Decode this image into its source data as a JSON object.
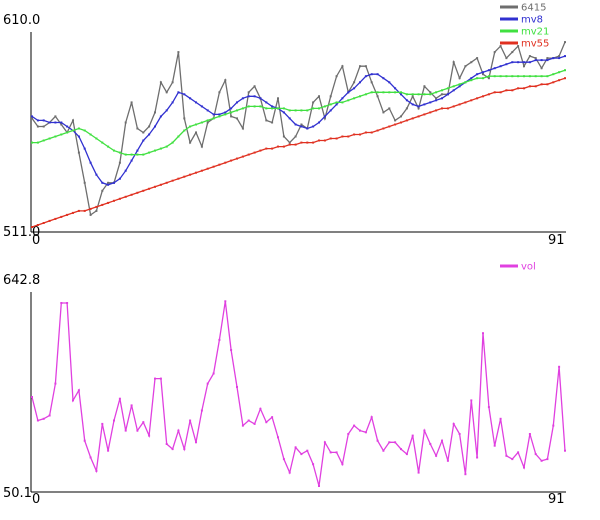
{
  "chart_data": [
    {
      "type": "line",
      "ylim": [
        511.0,
        610.0
      ],
      "xlim": [
        0,
        91
      ],
      "y_tick_labels": [
        "610.0",
        "511.0"
      ],
      "x_tick_labels": [
        "0",
        "91"
      ],
      "legend_placement": "top-right",
      "series": [
        {
          "name": "6415",
          "color": "#6e6e6e",
          "values": [
            567,
            563,
            563,
            565,
            568,
            564,
            560,
            566,
            550,
            535,
            519,
            521,
            531,
            535,
            535,
            545,
            565,
            575,
            562,
            560,
            563,
            570,
            585,
            580,
            585,
            600,
            567,
            555,
            560,
            553,
            565,
            567,
            580,
            586,
            568,
            567,
            562,
            580,
            583,
            577,
            566,
            565,
            577,
            558,
            555,
            558,
            564,
            562,
            575,
            578,
            567,
            578,
            588,
            593,
            580,
            585,
            593,
            593,
            585,
            578,
            570,
            572,
            566,
            568,
            572,
            578,
            572,
            583,
            580,
            577,
            579,
            579,
            595,
            587,
            593,
            595,
            597,
            589,
            587,
            600,
            603,
            597,
            600,
            603,
            593,
            598,
            597,
            592,
            597,
            597,
            598,
            605
          ]
        },
        {
          "name": "mv8",
          "color": "#3030d0",
          "values": [
            568,
            566,
            566,
            565,
            565,
            565,
            563,
            561,
            558,
            552,
            545,
            539,
            535,
            534,
            535,
            537,
            541,
            546,
            551,
            556,
            559,
            563,
            568,
            571,
            575,
            580,
            579,
            577,
            575,
            573,
            571,
            569,
            569,
            570,
            572,
            575,
            577,
            578,
            578,
            577,
            575,
            573,
            572,
            570,
            567,
            564,
            563,
            562,
            563,
            565,
            568,
            571,
            574,
            577,
            580,
            582,
            585,
            588,
            589,
            589,
            587,
            585,
            582,
            579,
            576,
            574,
            573,
            574,
            575,
            576,
            577,
            579,
            581,
            583,
            585,
            587,
            589,
            590,
            591,
            592,
            593,
            594,
            595,
            595,
            595,
            595,
            596,
            596,
            596,
            597,
            597,
            598
          ]
        },
        {
          "name": "mv21",
          "color": "#40e040",
          "values": [
            555,
            555,
            556,
            557,
            558,
            559,
            560,
            561,
            562,
            561,
            559,
            557,
            555,
            553,
            551,
            550,
            549,
            549,
            549,
            549,
            550,
            551,
            552,
            553,
            555,
            558,
            561,
            563,
            564,
            565,
            566,
            567,
            568,
            569,
            570,
            571,
            572,
            573,
            573,
            573,
            572,
            572,
            572,
            572,
            571,
            571,
            571,
            571,
            572,
            572,
            573,
            574,
            575,
            575,
            576,
            577,
            578,
            579,
            580,
            580,
            580,
            580,
            580,
            580,
            579,
            579,
            579,
            579,
            579,
            580,
            581,
            582,
            583,
            584,
            585,
            586,
            587,
            587,
            588,
            588,
            588,
            588,
            588,
            588,
            588,
            588,
            588,
            588,
            588,
            589,
            590,
            591
          ]
        },
        {
          "name": "mv55",
          "color": "#e03020",
          "values": [
            513,
            514,
            515,
            516,
            517,
            518,
            519,
            520,
            521,
            521,
            522,
            523,
            524,
            525,
            526,
            527,
            528,
            529,
            530,
            531,
            532,
            533,
            534,
            535,
            536,
            537,
            538,
            539,
            540,
            541,
            542,
            543,
            544,
            545,
            546,
            547,
            548,
            549,
            550,
            551,
            552,
            552,
            553,
            553,
            554,
            554,
            555,
            555,
            555,
            556,
            556,
            557,
            557,
            558,
            558,
            559,
            559,
            560,
            560,
            561,
            562,
            563,
            564,
            565,
            566,
            567,
            568,
            569,
            570,
            571,
            572,
            572,
            573,
            574,
            575,
            576,
            577,
            578,
            579,
            580,
            580,
            581,
            581,
            582,
            582,
            583,
            583,
            584,
            584,
            585,
            586,
            587
          ]
        }
      ]
    },
    {
      "type": "line",
      "ylim": [
        50.1,
        642.8
      ],
      "xlim": [
        0,
        91
      ],
      "y_tick_labels": [
        "642.8",
        "50.1"
      ],
      "x_tick_labels": [
        "0",
        "91"
      ],
      "legend_placement": "top-right",
      "series": [
        {
          "name": "vol",
          "color": "#e040e0",
          "values": [
            330,
            260,
            265,
            275,
            370,
            610,
            610,
            320,
            350,
            200,
            150,
            110,
            250,
            170,
            260,
            325,
            230,
            305,
            230,
            255,
            215,
            385,
            385,
            190,
            175,
            230,
            175,
            260,
            195,
            290,
            370,
            400,
            500,
            615,
            470,
            360,
            245,
            260,
            250,
            295,
            255,
            270,
            210,
            145,
            105,
            180,
            160,
            170,
            130,
            65,
            195,
            165,
            165,
            130,
            220,
            245,
            230,
            225,
            270,
            200,
            170,
            195,
            195,
            175,
            160,
            215,
            105,
            230,
            190,
            155,
            200,
            140,
            250,
            220,
            100,
            320,
            150,
            520,
            300,
            185,
            265,
            155,
            145,
            165,
            120,
            220,
            160,
            140,
            145,
            245,
            420,
            170
          ]
        }
      ]
    }
  ]
}
